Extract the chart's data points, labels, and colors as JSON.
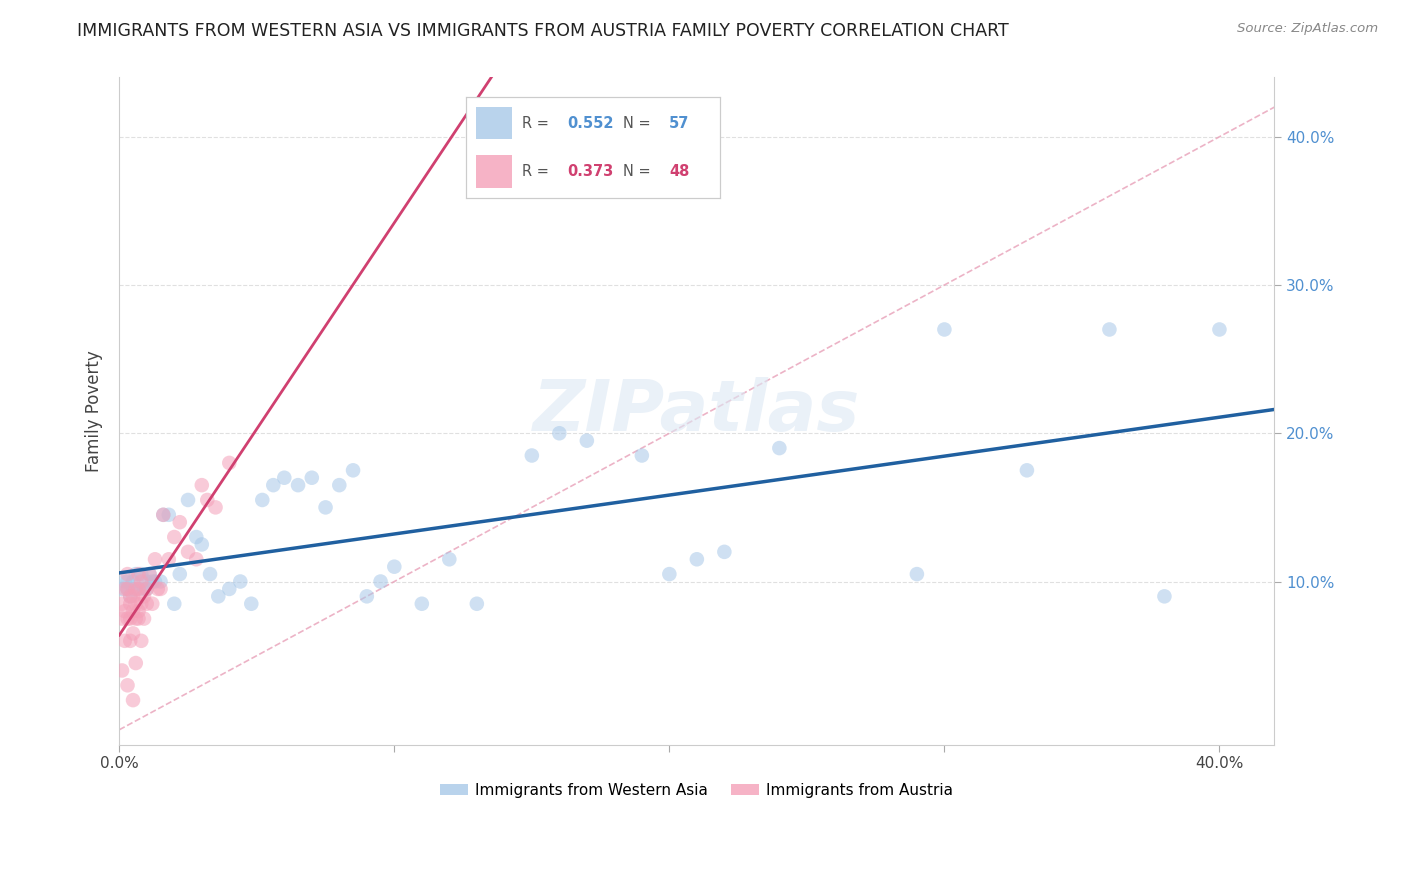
{
  "title": "IMMIGRANTS FROM WESTERN ASIA VS IMMIGRANTS FROM AUSTRIA FAMILY POVERTY CORRELATION CHART",
  "source": "Source: ZipAtlas.com",
  "ylabel": "Family Poverty",
  "xlim": [
    0.0,
    0.42
  ],
  "ylim": [
    -0.01,
    0.44
  ],
  "color_blue": "#a8c8e8",
  "color_pink": "#f4a0b8",
  "color_blue_line": "#2060a0",
  "color_pink_line": "#d04070",
  "color_diag": "#c8c8c8",
  "marker_size": 110,
  "alpha": 0.55,
  "background_color": "#ffffff",
  "grid_color": "#e0e0e0",
  "wa_x": [
    0.001,
    0.002,
    0.003,
    0.003,
    0.004,
    0.005,
    0.005,
    0.006,
    0.007,
    0.008,
    0.009,
    0.01,
    0.01,
    0.011,
    0.012,
    0.013,
    0.015,
    0.016,
    0.018,
    0.02,
    0.022,
    0.025,
    0.028,
    0.03,
    0.033,
    0.036,
    0.04,
    0.044,
    0.048,
    0.052,
    0.056,
    0.06,
    0.065,
    0.07,
    0.075,
    0.08,
    0.085,
    0.09,
    0.095,
    0.1,
    0.11,
    0.12,
    0.13,
    0.15,
    0.16,
    0.17,
    0.19,
    0.2,
    0.21,
    0.22,
    0.24,
    0.29,
    0.3,
    0.33,
    0.36,
    0.38,
    0.4
  ],
  "wa_y": [
    0.095,
    0.1,
    0.1,
    0.095,
    0.09,
    0.1,
    0.095,
    0.105,
    0.095,
    0.105,
    0.095,
    0.095,
    0.1,
    0.105,
    0.1,
    0.1,
    0.1,
    0.145,
    0.145,
    0.085,
    0.105,
    0.155,
    0.13,
    0.125,
    0.105,
    0.09,
    0.095,
    0.1,
    0.085,
    0.155,
    0.165,
    0.17,
    0.165,
    0.17,
    0.15,
    0.165,
    0.175,
    0.09,
    0.1,
    0.11,
    0.085,
    0.115,
    0.085,
    0.185,
    0.2,
    0.195,
    0.185,
    0.105,
    0.115,
    0.12,
    0.19,
    0.105,
    0.27,
    0.175,
    0.27,
    0.09,
    0.27
  ],
  "au_x": [
    0.001,
    0.001,
    0.001,
    0.002,
    0.002,
    0.002,
    0.003,
    0.003,
    0.003,
    0.003,
    0.004,
    0.004,
    0.004,
    0.004,
    0.005,
    0.005,
    0.005,
    0.005,
    0.006,
    0.006,
    0.006,
    0.006,
    0.007,
    0.007,
    0.007,
    0.007,
    0.008,
    0.008,
    0.008,
    0.009,
    0.009,
    0.01,
    0.01,
    0.011,
    0.012,
    0.013,
    0.014,
    0.015,
    0.016,
    0.018,
    0.02,
    0.022,
    0.025,
    0.028,
    0.03,
    0.032,
    0.035,
    0.04
  ],
  "au_y": [
    0.075,
    0.085,
    0.04,
    0.08,
    0.06,
    0.095,
    0.075,
    0.095,
    0.105,
    0.03,
    0.085,
    0.06,
    0.075,
    0.09,
    0.08,
    0.065,
    0.09,
    0.02,
    0.085,
    0.045,
    0.075,
    0.095,
    0.08,
    0.095,
    0.105,
    0.075,
    0.085,
    0.1,
    0.06,
    0.075,
    0.09,
    0.095,
    0.085,
    0.105,
    0.085,
    0.115,
    0.095,
    0.095,
    0.145,
    0.115,
    0.13,
    0.14,
    0.12,
    0.115,
    0.165,
    0.155,
    0.15,
    0.18
  ]
}
